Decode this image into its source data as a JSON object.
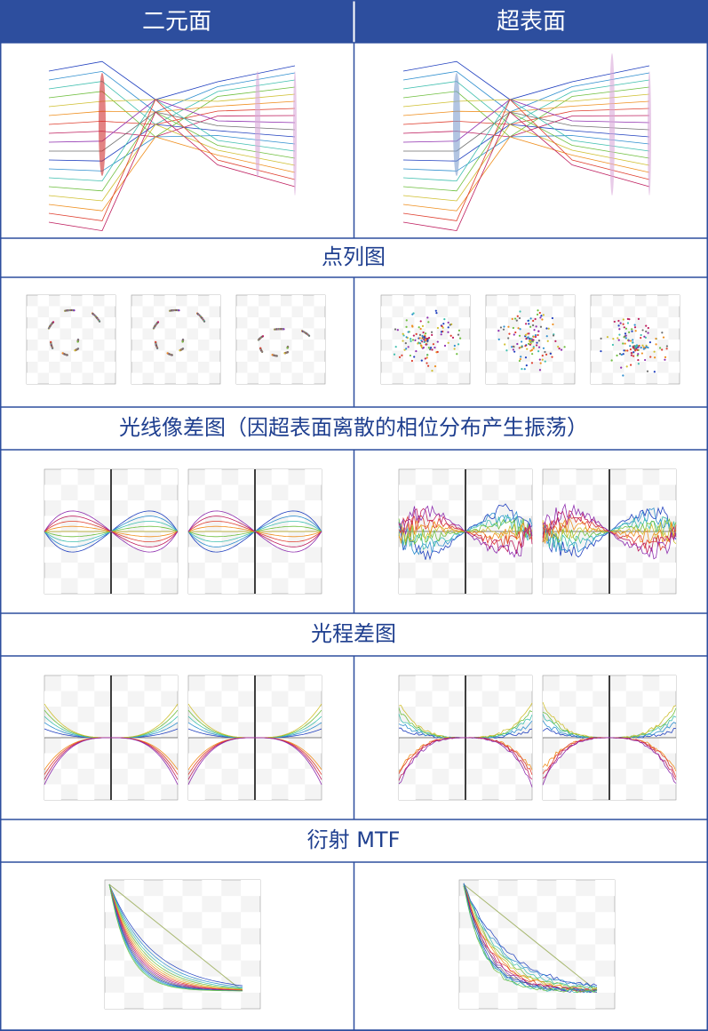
{
  "header": {
    "columns": [
      "二元面",
      "超表面"
    ]
  },
  "sections": [
    "点列图",
    "光线像差图（因超表面离散的相位分布产生振荡）",
    "光程差图",
    "衍射 MTF"
  ]
}
